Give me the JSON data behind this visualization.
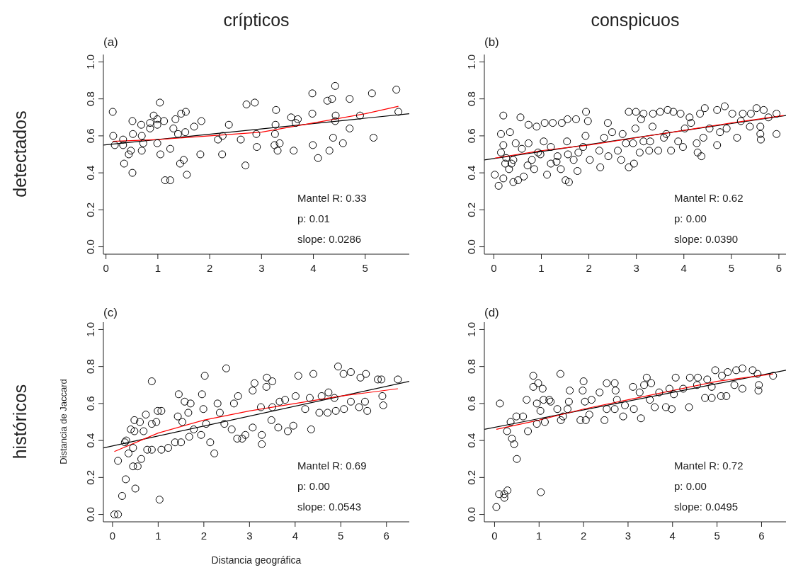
{
  "chart_data": [
    {
      "type": "scatter",
      "title": "crípticos",
      "subtitle": "(a)",
      "annotations": [
        "detectados",
        "Mantel R: 0.33",
        "p: 0.01",
        "slope: 0.0286"
      ],
      "xlim": [
        -0.05,
        5.85
      ],
      "ylim": [
        -0.04,
        1.04
      ],
      "xticks": [
        0,
        1,
        2,
        3,
        4,
        5
      ],
      "yticks": [
        {
          "value": 0,
          "label": "0.0"
        },
        {
          "value": 0.2,
          "label": "0.2"
        },
        {
          "value": 0.4,
          "label": "0.4"
        },
        {
          "value": 0.6,
          "label": "0.6"
        },
        {
          "value": 0.8,
          "label": "0.8"
        },
        {
          "value": 1,
          "label": "1.0"
        }
      ],
      "series": [
        {
          "type": "scatter",
          "marker": "circle",
          "color": "#000000",
          "x": [
            0.13,
            0.14,
            0.17,
            0.33,
            0.33,
            0.48,
            0.44,
            0.35,
            0.51,
            0.51,
            0.52,
            0.68,
            0.69,
            0.72,
            0.69,
            0.85,
            0.85,
            0.92,
            0.99,
            0.99,
            1.04,
            1.12,
            0.99,
            1.05,
            1.14,
            1.24,
            1.24,
            1.34,
            1.45,
            1.54,
            1.3,
            1.39,
            1.53,
            1.43,
            1.5,
            1.56,
            1.7,
            1.84,
            1.82,
            2.16,
            2.25,
            2.24,
            2.37,
            2.6,
            2.69,
            2.71,
            2.87,
            2.9,
            2.91,
            3.28,
            3.27,
            3.26,
            3.25,
            3.35,
            3.31,
            3.57,
            3.7,
            3.66,
            3.62,
            3.98,
            3.98,
            3.99,
            4.09,
            4.27,
            4.36,
            4.42,
            4.43,
            4.42,
            4.38,
            4.31,
            4.57,
            4.7,
            4.7,
            4.9,
            5.13,
            5.16,
            5.6,
            5.64
          ],
          "values": [
            0.73,
            0.6,
            0.55,
            0.58,
            0.55,
            0.52,
            0.5,
            0.45,
            0.4,
            0.68,
            0.61,
            0.66,
            0.6,
            0.56,
            0.52,
            0.67,
            0.64,
            0.71,
            0.69,
            0.66,
            0.78,
            0.68,
            0.56,
            0.5,
            0.36,
            0.36,
            0.53,
            0.69,
            0.72,
            0.73,
            0.64,
            0.61,
            0.62,
            0.45,
            0.47,
            0.39,
            0.65,
            0.68,
            0.5,
            0.58,
            0.6,
            0.5,
            0.66,
            0.58,
            0.44,
            0.77,
            0.78,
            0.61,
            0.54,
            0.74,
            0.66,
            0.61,
            0.55,
            0.56,
            0.52,
            0.7,
            0.69,
            0.67,
            0.52,
            0.83,
            0.72,
            0.55,
            0.48,
            0.79,
            0.8,
            0.87,
            0.71,
            0.68,
            0.59,
            0.52,
            0.56,
            0.8,
            0.64,
            0.71,
            0.83,
            0.59,
            0.85,
            0.73
          ]
        },
        {
          "type": "line",
          "marker": "none",
          "color": "#000000",
          "x": [
            -0.05,
            5.85
          ],
          "values": [
            0.55,
            0.72
          ]
        },
        {
          "type": "line",
          "marker": "none",
          "color": "#ff0000",
          "x": [
            0.13,
            1,
            2,
            3,
            4,
            5,
            5.64
          ],
          "values": [
            0.57,
            0.58,
            0.6,
            0.62,
            0.67,
            0.72,
            0.76
          ]
        }
      ]
    },
    {
      "type": "scatter",
      "title": "conspicuos",
      "subtitle": "(b)",
      "annotations": [
        "Mantel R: 0.62",
        "p: 0.00",
        "slope: 0.0390"
      ],
      "xlim": [
        -0.2,
        6.15
      ],
      "ylim": [
        -0.04,
        1.04
      ],
      "xticks": [
        0,
        1,
        2,
        3,
        4,
        5,
        6
      ],
      "yticks": [
        {
          "value": 0,
          "label": "0.0"
        },
        {
          "value": 0.2,
          "label": "0.2"
        },
        {
          "value": 0.4,
          "label": "0.4"
        },
        {
          "value": 0.6,
          "label": "0.6"
        },
        {
          "value": 0.8,
          "label": "0.8"
        },
        {
          "value": 1,
          "label": "1.0"
        }
      ],
      "series": [
        {
          "type": "scatter",
          "marker": "circle",
          "color": "#000000",
          "x": [
            0.2,
            0.56,
            1.94,
            0.73,
            0.9,
            1.07,
            1.24,
            1.43,
            1.55,
            1.73,
            1.98,
            2.4,
            2.84,
            2.99,
            3.15,
            3.35,
            3.5,
            3.66,
            3.78,
            3.93,
            4.12,
            4.34,
            4.44,
            4.7,
            4.86,
            5.02,
            5.24,
            5.41,
            5.53,
            5.68,
            5.95,
            0.15,
            0.34,
            0.46,
            0.2,
            0.15,
            0.24,
            0.41,
            0.32,
            0.02,
            0.1,
            0.2,
            0.41,
            0.51,
            0.63,
            0.59,
            0.73,
            0.8,
            0.85,
            0.93,
            1.05,
            1.12,
            1.2,
            1.2,
            1.32,
            1.41,
            1.51,
            1.58,
            1.54,
            1.56,
            1.68,
            1.76,
            1.78,
            1.93,
            1.88,
            2.02,
            2.22,
            2.24,
            2.32,
            2.41,
            2.49,
            2.61,
            2.68,
            2.71,
            2.78,
            2.84,
            2.93,
            2.95,
            2.98,
            3.1,
            3.15,
            3.07,
            3.29,
            3.27,
            3.34,
            3.46,
            3.58,
            3.63,
            3.73,
            3.88,
            3.98,
            4.02,
            4.15,
            4.27,
            4.29,
            4.37,
            4.41,
            4.54,
            4.7,
            4.76,
            4.9,
            5.12,
            5.2,
            5.39,
            5.61,
            5.61,
            5.62,
            5.95,
            5.78,
            0.26,
            0.37,
            0.71,
            0.98,
            1.34
          ],
          "values": [
            0.71,
            0.7,
            0.73,
            0.66,
            0.65,
            0.67,
            0.67,
            0.67,
            0.69,
            0.69,
            0.68,
            0.67,
            0.73,
            0.73,
            0.72,
            0.72,
            0.73,
            0.74,
            0.73,
            0.72,
            0.7,
            0.72,
            0.75,
            0.74,
            0.76,
            0.72,
            0.72,
            0.72,
            0.75,
            0.74,
            0.72,
            0.61,
            0.62,
            0.56,
            0.55,
            0.51,
            0.45,
            0.47,
            0.42,
            0.39,
            0.33,
            0.37,
            0.35,
            0.36,
            0.38,
            0.53,
            0.56,
            0.47,
            0.42,
            0.51,
            0.57,
            0.39,
            0.54,
            0.45,
            0.46,
            0.42,
            0.36,
            0.35,
            0.57,
            0.5,
            0.47,
            0.41,
            0.51,
            0.6,
            0.54,
            0.47,
            0.52,
            0.43,
            0.59,
            0.49,
            0.62,
            0.52,
            0.47,
            0.61,
            0.56,
            0.43,
            0.56,
            0.45,
            0.64,
            0.69,
            0.57,
            0.51,
            0.57,
            0.52,
            0.65,
            0.52,
            0.59,
            0.61,
            0.52,
            0.57,
            0.54,
            0.64,
            0.67,
            0.56,
            0.51,
            0.49,
            0.59,
            0.64,
            0.55,
            0.62,
            0.64,
            0.59,
            0.68,
            0.65,
            0.65,
            0.61,
            0.58,
            0.61,
            0.7,
            0.48,
            0.45,
            0.44,
            0.5,
            0.49
          ]
        },
        {
          "type": "line",
          "marker": "none",
          "color": "#000000",
          "x": [
            -0.2,
            6.15
          ],
          "values": [
            0.47,
            0.71
          ]
        },
        {
          "type": "line",
          "marker": "none",
          "color": "#ff0000",
          "x": [
            0.02,
            1,
            2,
            3,
            4,
            5,
            6.1
          ],
          "values": [
            0.48,
            0.52,
            0.55,
            0.59,
            0.63,
            0.67,
            0.71
          ]
        }
      ]
    },
    {
      "type": "scatter",
      "subtitle": "(c)",
      "xlabel": "Distancia geográfica",
      "ylabel": "Distancia de Jaccard",
      "annotations": [
        "históricos",
        "Mantel R: 0.69",
        "p: 0.00",
        "slope: 0.0543"
      ],
      "xlim": [
        -0.2,
        6.5
      ],
      "ylim": [
        -0.04,
        1.04
      ],
      "xticks": [
        0,
        1,
        2,
        3,
        4,
        5,
        6
      ],
      "yticks": [
        {
          "value": 0,
          "label": "0.0"
        },
        {
          "value": 0.2,
          "label": "0.2"
        },
        {
          "value": 0.4,
          "label": "0.4"
        },
        {
          "value": 0.6,
          "label": "0.6"
        },
        {
          "value": 0.8,
          "label": "0.8"
        },
        {
          "value": 1,
          "label": "1.0"
        }
      ],
      "series": [
        {
          "type": "scatter",
          "marker": "circle",
          "color": "#000000",
          "x": [
            0.04,
            0.12,
            0.21,
            0.5,
            0.29,
            0.12,
            1.03,
            0.3,
            0.48,
            0.6,
            0.73,
            0.86,
            0.99,
            1.07,
            0.96,
            0.86,
            0.4,
            0.48,
            0.68,
            0.45,
            0.35,
            0.55,
            0.45,
            0.63,
            0.76,
            0.86,
            1.07,
            1.22,
            1.37,
            1.5,
            1.68,
            1.45,
            1.58,
            1.71,
            1.66,
            1.43,
            1.53,
            1.78,
            1.94,
            2.02,
            1.96,
            1.99,
            2.05,
            2.14,
            2.23,
            2.3,
            2.35,
            2.49,
            2.45,
            2.61,
            2.66,
            2.75,
            2.73,
            2.84,
            2.91,
            3.07,
            3.11,
            3.07,
            3.25,
            3.27,
            3.27,
            3.38,
            3.37,
            3.5,
            3.48,
            3.5,
            3.63,
            3.66,
            3.78,
            3.84,
            3.96,
            4.01,
            4.07,
            4.22,
            4.32,
            4.35,
            4.4,
            4.53,
            4.58,
            4.71,
            4.73,
            4.89,
            4.86,
            4.94,
            5.06,
            5.07,
            5.22,
            5.22,
            5.43,
            5.4,
            5.55,
            5.58,
            5.53,
            5.81,
            5.89,
            5.91,
            5.93,
            6.25,
            0.27
          ],
          "values": [
            0,
            0,
            0.1,
            0.14,
            0.19,
            0.29,
            0.08,
            0.4,
            0.51,
            0.5,
            0.54,
            0.72,
            0.56,
            0.56,
            0.5,
            0.49,
            0.46,
            0.45,
            0.45,
            0.36,
            0.33,
            0.26,
            0.26,
            0.3,
            0.35,
            0.35,
            0.35,
            0.36,
            0.39,
            0.39,
            0.42,
            0.65,
            0.61,
            0.6,
            0.55,
            0.53,
            0.5,
            0.46,
            0.43,
            0.75,
            0.65,
            0.57,
            0.49,
            0.39,
            0.33,
            0.6,
            0.55,
            0.79,
            0.49,
            0.46,
            0.6,
            0.64,
            0.41,
            0.41,
            0.43,
            0.67,
            0.71,
            0.47,
            0.58,
            0.43,
            0.38,
            0.74,
            0.69,
            0.72,
            0.51,
            0.58,
            0.47,
            0.61,
            0.62,
            0.45,
            0.48,
            0.64,
            0.75,
            0.57,
            0.63,
            0.46,
            0.76,
            0.55,
            0.64,
            0.55,
            0.66,
            0.56,
            0.63,
            0.8,
            0.76,
            0.57,
            0.77,
            0.61,
            0.74,
            0.58,
            0.76,
            0.56,
            0.61,
            0.73,
            0.73,
            0.64,
            0.59,
            0.73,
            0.39
          ]
        },
        {
          "type": "line",
          "marker": "none",
          "color": "#000000",
          "x": [
            -0.2,
            6.5
          ],
          "values": [
            0.36,
            0.72
          ]
        },
        {
          "type": "line",
          "marker": "none",
          "color": "#ff0000",
          "x": [
            0.04,
            1,
            2,
            3,
            4,
            5,
            6.25
          ],
          "values": [
            0.34,
            0.44,
            0.51,
            0.56,
            0.6,
            0.64,
            0.68
          ]
        }
      ]
    },
    {
      "type": "scatter",
      "subtitle": "(d)",
      "annotations": [
        "Mantel R: 0.72",
        "p: 0.00",
        "slope: 0.0495"
      ],
      "xlim": [
        -0.23,
        6.55
      ],
      "ylim": [
        -0.04,
        1.04
      ],
      "xticks": [
        0,
        1,
        2,
        3,
        4,
        5,
        6
      ],
      "yticks": [
        {
          "value": 0,
          "label": "0.0"
        },
        {
          "value": 0.2,
          "label": "0.2"
        },
        {
          "value": 0.4,
          "label": "0.4"
        },
        {
          "value": 0.6,
          "label": "0.6"
        },
        {
          "value": 0.8,
          "label": "0.8"
        },
        {
          "value": 1,
          "label": "1.0"
        }
      ],
      "series": [
        {
          "type": "scatter",
          "marker": "circle",
          "color": "#000000",
          "x": [
            0.04,
            0.1,
            0.22,
            0.22,
            0.29,
            1.04,
            0.5,
            0.12,
            0.44,
            0.39,
            0.28,
            0.36,
            0.49,
            0.64,
            0.72,
            0.75,
            0.87,
            0.87,
            0.98,
            0.95,
            1.08,
            1.03,
            1.1,
            1.13,
            1.23,
            1.26,
            0.95,
            1.41,
            1.48,
            1.49,
            1.54,
            1.69,
            1.67,
            1.64,
            1.93,
            2.05,
            1.98,
            2.0,
            2.03,
            2.13,
            2.18,
            2.36,
            2.47,
            2.52,
            2.52,
            2.7,
            2.72,
            2.75,
            2.7,
            2.89,
            2.93,
            3.11,
            3.13,
            3.29,
            3.26,
            3.42,
            3.36,
            3.52,
            3.49,
            3.6,
            3.7,
            3.85,
            3.98,
            3.93,
            4.07,
            4.03,
            4.24,
            4.37,
            4.39,
            4.57,
            4.55,
            4.73,
            4.78,
            4.88,
            4.88,
            4.96,
            5.09,
            5.21,
            5.24,
            5.11,
            5.43,
            5.57,
            5.57,
            5.39,
            5.8,
            5.94,
            5.93,
            5.91,
            6.26
          ],
          "values": [
            0.04,
            0.11,
            0.09,
            0.11,
            0.13,
            0.12,
            0.3,
            0.6,
            0.38,
            0.41,
            0.45,
            0.5,
            0.53,
            0.53,
            0.62,
            0.45,
            0.75,
            0.69,
            0.71,
            0.6,
            0.68,
            0.56,
            0.62,
            0.5,
            0.62,
            0.61,
            0.49,
            0.57,
            0.76,
            0.51,
            0.53,
            0.67,
            0.61,
            0.57,
            0.51,
            0.51,
            0.67,
            0.72,
            0.61,
            0.54,
            0.62,
            0.66,
            0.51,
            0.57,
            0.71,
            0.71,
            0.67,
            0.62,
            0.57,
            0.53,
            0.59,
            0.69,
            0.57,
            0.52,
            0.66,
            0.74,
            0.7,
            0.71,
            0.62,
            0.58,
            0.66,
            0.58,
            0.57,
            0.68,
            0.74,
            0.65,
            0.68,
            0.58,
            0.74,
            0.74,
            0.7,
            0.63,
            0.73,
            0.63,
            0.69,
            0.78,
            0.64,
            0.64,
            0.77,
            0.75,
            0.78,
            0.79,
            0.68,
            0.7,
            0.78,
            0.7,
            0.67,
            0.76,
            0.75
          ]
        },
        {
          "type": "line",
          "marker": "none",
          "color": "#000000",
          "x": [
            -0.23,
            6.55
          ],
          "values": [
            0.46,
            0.78
          ]
        },
        {
          "type": "line",
          "marker": "none",
          "color": "#ff0000",
          "x": [
            0.04,
            1,
            2,
            3,
            4,
            5,
            6.26
          ],
          "values": [
            0.46,
            0.51,
            0.57,
            0.62,
            0.67,
            0.72,
            0.76
          ]
        }
      ]
    }
  ]
}
